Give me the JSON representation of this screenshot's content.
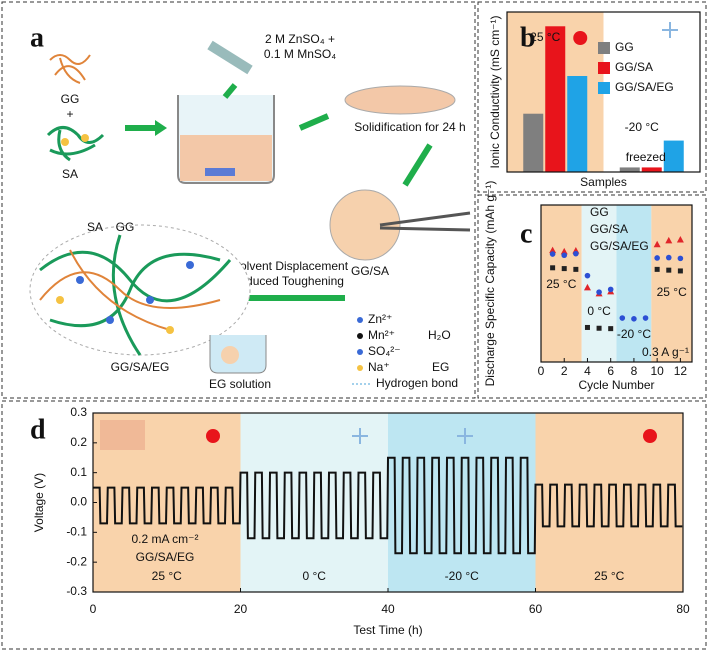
{
  "diagram": {
    "panel_label": "a",
    "reagent": [
      "2 M ZnSO₄ +",
      "0.1 M MnSO₄"
    ],
    "gg": "GG",
    "plus": "+",
    "sa": "SA",
    "step1": "Solidification for 24 h",
    "gg_sa": "GG/SA",
    "step2": [
      "Solvent Displacement",
      "Induced Toughening"
    ],
    "network_labels": [
      "SA",
      "GG"
    ],
    "product": "GG/SA/EG",
    "bath": "EG solution",
    "legend": [
      "Zn²⁺",
      "Mn²⁺",
      "SO₄²⁻",
      "Na⁺",
      "H₂O",
      "EG",
      "Hydrogen bond"
    ]
  },
  "chart_data": [
    {
      "type": "bar",
      "panel_label": "b",
      "y_label": "Ionic Conductivity (mS cm⁻¹)",
      "x_label": "Samples",
      "categories": [
        "25 °C",
        "-20 °C"
      ],
      "background_colors": [
        "#f9d3ab",
        "#ffffff"
      ],
      "ylim": [
        0,
        28
      ],
      "annotation": "freezed",
      "series": [
        {
          "name": "GG",
          "color": "#7f7f7f",
          "values": [
            10.2,
            0.8
          ]
        },
        {
          "name": "GG/SA",
          "color": "#e8141b",
          "values": [
            25.5,
            0.8
          ]
        },
        {
          "name": "GG/SA/EG",
          "color": "#1fa3e6",
          "values": [
            16.8,
            5.5
          ]
        }
      ]
    },
    {
      "type": "scatter",
      "panel_label": "c",
      "y_label": "Discharge Specific Capacity (mAh g⁻¹)",
      "x_label": "Cycle Number",
      "x": [
        1,
        2,
        3,
        4,
        5,
        6,
        7,
        8,
        9,
        10,
        11,
        12
      ],
      "xlim": [
        0,
        13
      ],
      "xticks": [
        0,
        2,
        4,
        6,
        8,
        10,
        12
      ],
      "ylim": [
        0,
        400
      ],
      "annotation": "0.3 A g⁻¹",
      "regions": [
        {
          "label": "25 °C",
          "from": 0,
          "to": 3.5,
          "color": "#f9d3ab"
        },
        {
          "label": "0 °C",
          "from": 3.5,
          "to": 6.5,
          "color": "#e3f4f6"
        },
        {
          "label": "-20 °C",
          "from": 6.5,
          "to": 9.5,
          "color": "#bde6f2"
        },
        {
          "label": "25 °C",
          "from": 9.5,
          "to": 13,
          "color": "#f9d3ab"
        }
      ],
      "series": [
        {
          "name": "GG",
          "color": "#222222",
          "marker": "square",
          "values": [
            240,
            238,
            236,
            88,
            86,
            85,
            null,
            null,
            null,
            236,
            234,
            232
          ]
        },
        {
          "name": "GG/SA",
          "color": "#e0252a",
          "marker": "triangle",
          "values": [
            285,
            282,
            284,
            190,
            175,
            180,
            null,
            null,
            null,
            300,
            310,
            312
          ]
        },
        {
          "name": "GG/SA/EG",
          "color": "#2c4fd4",
          "marker": "circle",
          "values": [
            275,
            272,
            276,
            220,
            178,
            185,
            112,
            110,
            112,
            265,
            266,
            264
          ]
        }
      ]
    },
    {
      "type": "line",
      "panel_label": "d",
      "y_label": "Voltage (V)",
      "x_label": "Test Time (h)",
      "annotation": [
        "0.2 mA cm⁻²",
        "GG/SA/EG"
      ],
      "xlim": [
        0,
        80
      ],
      "xticks": [
        0,
        20,
        40,
        60,
        80
      ],
      "ylim": [
        -0.3,
        0.3
      ],
      "yticks": [
        -0.3,
        -0.2,
        -0.1,
        {
          "value": 0,
          "label": "0.0"
        },
        0.1,
        0.2,
        0.3
      ],
      "regions": [
        {
          "label": "25 °C",
          "from": 0,
          "to": 20,
          "color": "#f9d3ab"
        },
        {
          "label": "0 °C",
          "from": 20,
          "to": 40,
          "color": "#e3f4f6"
        },
        {
          "label": "-20 °C",
          "from": 40,
          "to": 60,
          "color": "#bde6f2"
        },
        {
          "label": "25 °C",
          "from": 60,
          "to": 80,
          "color": "#f9d3ab"
        }
      ],
      "x": [
        0,
        0.9,
        1,
        1.9,
        2,
        2.9,
        3,
        3.9,
        4,
        4.9,
        5,
        5.9,
        6,
        6.9,
        7,
        7.9,
        8,
        8.9,
        9,
        9.9,
        10,
        10.9,
        11,
        11.9,
        12,
        12.9,
        13,
        13.9,
        14,
        14.9,
        15,
        15.9,
        16,
        16.9,
        17,
        17.9,
        18,
        18.9,
        19,
        19.9,
        20,
        20.9,
        21,
        21.9,
        22,
        22.9,
        23,
        23.9,
        24,
        24.9,
        25,
        25.9,
        26,
        26.9,
        27,
        27.9,
        28,
        28.9,
        29,
        29.9,
        30,
        30.9,
        31,
        31.9,
        32,
        32.9,
        33,
        33.9,
        34,
        34.9,
        35,
        35.9,
        36,
        36.9,
        37,
        37.9,
        38,
        38.9,
        39,
        39.9,
        40,
        40.9,
        41,
        41.9,
        42,
        42.9,
        43,
        43.9,
        44,
        44.9,
        45,
        45.9,
        46,
        46.9,
        47,
        47.9,
        48,
        48.9,
        49,
        49.9,
        50,
        50.9,
        51,
        51.9,
        52,
        52.9,
        53,
        53.9,
        54,
        54.9,
        55,
        55.9,
        56,
        56.9,
        57,
        57.9,
        58,
        58.9,
        59,
        59.9,
        60,
        60.9,
        61,
        61.9,
        62,
        62.9,
        63,
        63.9,
        64,
        64.9,
        65,
        65.9,
        66,
        66.9,
        67,
        67.9,
        68,
        68.9,
        69,
        69.9,
        70,
        70.9,
        71,
        71.9,
        72,
        72.9,
        73,
        73.9,
        74,
        74.9,
        75,
        75.9,
        76,
        76.9,
        77,
        77.9,
        78,
        78.9,
        79,
        79.9
      ],
      "series": [
        {
          "name": "GG/SA/EG",
          "color": "#111111",
          "values": [
            0.05,
            0.05,
            -0.07,
            -0.07,
            0.05,
            0.05,
            -0.07,
            -0.07,
            0.05,
            0.05,
            -0.07,
            -0.07,
            0.05,
            0.05,
            -0.07,
            -0.07,
            0.05,
            0.05,
            -0.07,
            -0.07,
            0.05,
            0.05,
            -0.07,
            -0.07,
            0.05,
            0.05,
            -0.07,
            -0.07,
            0.05,
            0.05,
            -0.07,
            -0.07,
            0.05,
            0.05,
            -0.07,
            -0.07,
            0.05,
            0.05,
            -0.07,
            -0.07,
            0.1,
            0.1,
            -0.12,
            -0.12,
            0.1,
            0.1,
            -0.12,
            -0.12,
            0.1,
            0.1,
            -0.12,
            -0.12,
            0.1,
            0.1,
            -0.12,
            -0.12,
            0.1,
            0.1,
            -0.12,
            -0.12,
            0.1,
            0.1,
            -0.12,
            -0.12,
            0.1,
            0.1,
            -0.12,
            -0.12,
            0.1,
            0.1,
            -0.12,
            -0.12,
            0.1,
            0.1,
            -0.12,
            -0.12,
            0.1,
            0.1,
            -0.12,
            -0.12,
            0.15,
            0.15,
            -0.17,
            -0.17,
            0.15,
            0.15,
            -0.17,
            -0.17,
            0.15,
            0.15,
            -0.17,
            -0.17,
            0.15,
            0.15,
            -0.17,
            -0.17,
            0.15,
            0.15,
            -0.17,
            -0.17,
            0.15,
            0.15,
            -0.17,
            -0.17,
            0.15,
            0.15,
            -0.17,
            -0.17,
            0.15,
            0.15,
            -0.17,
            -0.17,
            0.15,
            0.15,
            -0.17,
            -0.17,
            0.15,
            0.15,
            -0.17,
            -0.17,
            0.06,
            0.06,
            -0.08,
            -0.08,
            0.06,
            0.06,
            -0.08,
            -0.08,
            0.06,
            0.06,
            -0.08,
            -0.08,
            0.06,
            0.06,
            -0.08,
            -0.08,
            0.06,
            0.06,
            -0.08,
            -0.08,
            0.06,
            0.06,
            -0.08,
            -0.08,
            0.06,
            0.06,
            -0.08,
            -0.08,
            0.06,
            0.06,
            -0.08,
            -0.08,
            0.06,
            0.06,
            -0.08,
            -0.08,
            0.06,
            0.06,
            -0.08,
            -0.08
          ]
        }
      ]
    }
  ]
}
